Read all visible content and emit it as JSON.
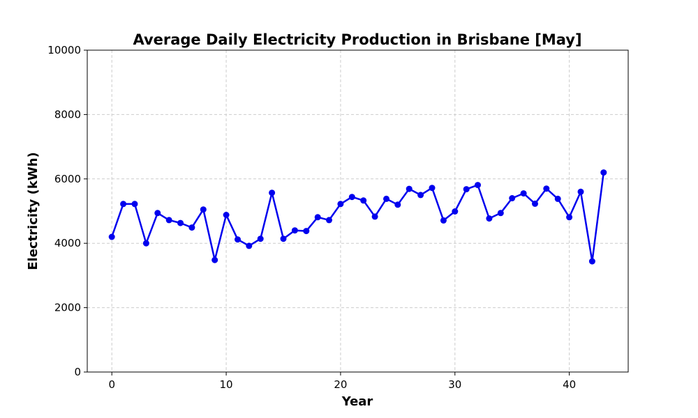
{
  "chart_data": {
    "type": "line",
    "title": "Average Daily Electricity Production in Brisbane [May]",
    "xlabel": "Year",
    "ylabel": "Electricity (kWh)",
    "xlim": [
      -2.15,
      45.15
    ],
    "ylim": [
      0,
      10000
    ],
    "xticks": [
      0,
      10,
      20,
      30,
      40
    ],
    "xtick_labels": [
      "0",
      "10",
      "20",
      "30",
      "40"
    ],
    "yticks": [
      0,
      2000,
      4000,
      6000,
      8000,
      10000
    ],
    "ytick_labels": [
      "0",
      "2000",
      "4000",
      "6000",
      "8000",
      "10000"
    ],
    "grid": true,
    "series": [
      {
        "color": "#0000ee",
        "marker": "circle",
        "x": [
          0,
          1,
          2,
          3,
          4,
          5,
          6,
          7,
          8,
          9,
          10,
          11,
          12,
          13,
          14,
          15,
          16,
          17,
          18,
          19,
          20,
          21,
          22,
          23,
          24,
          25,
          26,
          27,
          28,
          29,
          30,
          31,
          32,
          33,
          34,
          35,
          36,
          37,
          38,
          39,
          40,
          41,
          42,
          43
        ],
        "y": [
          4200,
          5220,
          5220,
          4000,
          4940,
          4720,
          4630,
          4490,
          5050,
          3480,
          4880,
          4120,
          3920,
          4140,
          5570,
          4140,
          4400,
          4380,
          4810,
          4720,
          5220,
          5440,
          5330,
          4830,
          5380,
          5200,
          5690,
          5500,
          5720,
          4710,
          4990,
          5680,
          5810,
          4770,
          4940,
          5400,
          5550,
          5230,
          5700,
          5380,
          4810,
          5600,
          3440,
          6200
        ]
      }
    ]
  }
}
